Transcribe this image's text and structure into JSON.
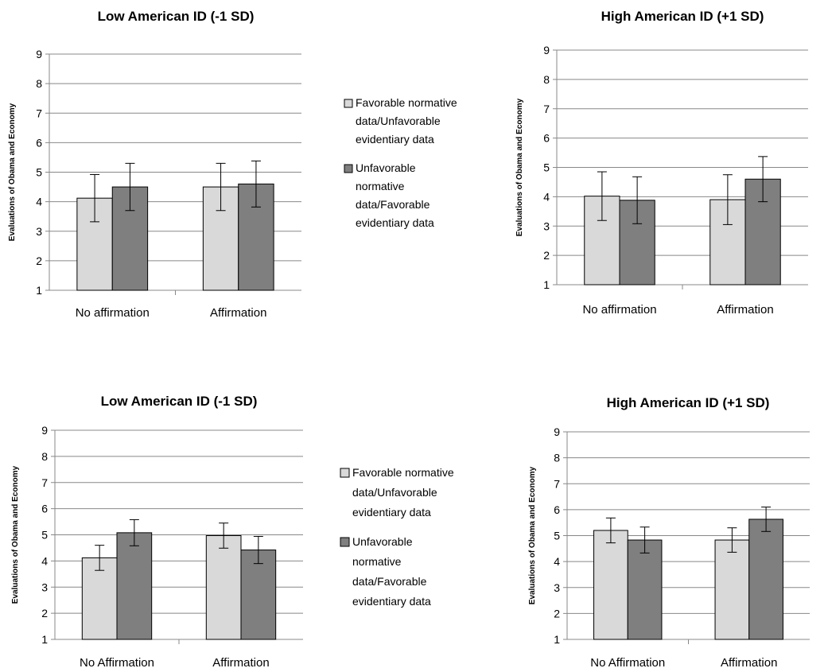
{
  "legend": [
    {
      "label_lines": [
        "Favorable normative",
        "data/Unfavorable",
        "evidentiary data"
      ],
      "color": "#d9d9d9"
    },
    {
      "label_lines": [
        "Unfavorable",
        "normative",
        "data/Favorable",
        "evidentiary data"
      ],
      "color": "#7f7f7f"
    }
  ],
  "chart_data": [
    {
      "type": "bar",
      "title": "Low American ID (-1 SD)",
      "ylabel": "Evaluations of Obama and Economy",
      "ylim": [
        1,
        9
      ],
      "yticks": [
        "1",
        "2",
        "3",
        "4",
        "5",
        "6",
        "7",
        "8",
        "9"
      ],
      "categories": [
        "No affirmation",
        "Affirmation"
      ],
      "series": [
        {
          "name": "Favorable normative data/Unfavorable evidentiary data",
          "values": [
            4.12,
            4.5
          ],
          "error": [
            0.8,
            0.8
          ],
          "color": "#d9d9d9"
        },
        {
          "name": "Unfavorable normative data/Favorable evidentiary data",
          "values": [
            4.5,
            4.6
          ],
          "error": [
            0.8,
            0.78
          ],
          "color": "#7f7f7f"
        }
      ]
    },
    {
      "type": "bar",
      "title": "High American ID (+1 SD)",
      "ylabel": "Evaluations of Obama and Economy",
      "ylim": [
        1,
        9
      ],
      "yticks": [
        "1",
        "2",
        "3",
        "4",
        "5",
        "6",
        "7",
        "8",
        "9"
      ],
      "categories": [
        "No affirmation",
        "Affirmation"
      ],
      "series": [
        {
          "name": "Favorable normative data/Unfavorable evidentiary data",
          "values": [
            4.02,
            3.9
          ],
          "error": [
            0.83,
            0.85
          ],
          "color": "#d9d9d9"
        },
        {
          "name": "Unfavorable normative data/Favorable evidentiary data",
          "values": [
            3.88,
            4.6
          ],
          "error": [
            0.8,
            0.77
          ],
          "color": "#7f7f7f"
        }
      ]
    },
    {
      "type": "bar",
      "title": "Low American ID (-1 SD)",
      "ylabel": "Evaluations of Obama and Economy",
      "ylim": [
        1,
        9
      ],
      "yticks": [
        "1",
        "2",
        "3",
        "4",
        "5",
        "6",
        "7",
        "8",
        "9"
      ],
      "categories": [
        "No Affirmation",
        "Affirmation"
      ],
      "series": [
        {
          "name": "Favorable normative data/Unfavorable evidentiary data",
          "values": [
            4.12,
            4.97
          ],
          "error": [
            0.48,
            0.48
          ],
          "color": "#d9d9d9"
        },
        {
          "name": "Unfavorable normative data/Favorable evidentiary data",
          "values": [
            5.08,
            4.42
          ],
          "error": [
            0.5,
            0.52
          ],
          "color": "#7f7f7f"
        }
      ]
    },
    {
      "type": "bar",
      "title": "High American ID (+1 SD)",
      "ylabel": "Evaluations of Obama and Economy",
      "ylim": [
        1,
        9
      ],
      "yticks": [
        "1",
        "2",
        "3",
        "4",
        "5",
        "6",
        "7",
        "8",
        "9"
      ],
      "categories": [
        "No Affirmation",
        "Affirmation"
      ],
      "series": [
        {
          "name": "Favorable normative data/Unfavorable evidentiary data",
          "values": [
            5.2,
            4.83
          ],
          "error": [
            0.48,
            0.47
          ],
          "color": "#d9d9d9"
        },
        {
          "name": "Unfavorable normative data/Favorable evidentiary data",
          "values": [
            4.83,
            5.63
          ],
          "error": [
            0.5,
            0.47
          ],
          "color": "#7f7f7f"
        }
      ]
    }
  ]
}
